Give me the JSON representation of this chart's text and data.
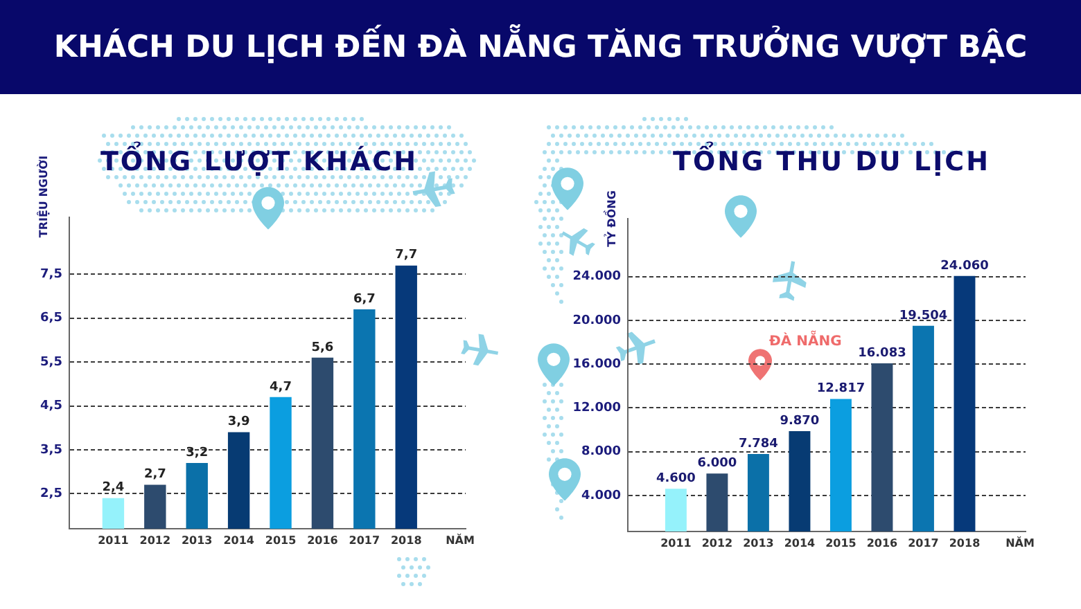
{
  "chart_data": [
    {
      "type": "other",
      "title": "KHÁCH DU LỊCH ĐẾN ĐÀ NẴNG TĂNG TRƯỞNG VƯỢT BẬC"
    },
    {
      "type": "bar",
      "title": "TỔNG LƯỢT KHÁCH",
      "ylabel": "TRIỆU NGƯỜI",
      "xlabel": "NĂM",
      "categories": [
        "2011",
        "2012",
        "2013",
        "2014",
        "2015",
        "2016",
        "2017",
        "2018"
      ],
      "values": [
        2.4,
        2.7,
        3.2,
        3.9,
        4.7,
        5.6,
        6.7,
        7.7
      ],
      "colors": [
        "#95f2fb",
        "#2d4b6e",
        "#0b70a8",
        "#073b73",
        "#0b9ee0",
        "#2d4b6e",
        "#0b75b0",
        "#06397a"
      ],
      "value_labels": [
        "2,4",
        "2,7",
        "3,2",
        "3,9",
        "4,7",
        "5,6",
        "6,7",
        "7,7"
      ],
      "ylim": [
        1.7,
        8.8
      ],
      "yticks": [
        {
          "value": 2.5,
          "label": "2,5"
        },
        {
          "value": 3.5,
          "label": "3,5"
        },
        {
          "value": 4.5,
          "label": "4,5"
        },
        {
          "value": 5.5,
          "label": "5,5"
        },
        {
          "value": 6.5,
          "label": "6,5"
        },
        {
          "value": 7.5,
          "label": "7,5"
        }
      ],
      "grid": "y"
    },
    {
      "type": "bar",
      "title": "TỔNG THU DU LỊCH",
      "ylabel": "TỶ ĐỒNG",
      "xlabel": "NĂM",
      "categories": [
        "2011",
        "2012",
        "2013",
        "2014",
        "2015",
        "2016",
        "2017",
        "2018"
      ],
      "values": [
        4600,
        6000,
        7784,
        9870,
        12817,
        16083,
        19504,
        24060
      ],
      "colors": [
        "#95f2fb",
        "#2d4b6e",
        "#0b70a8",
        "#073b73",
        "#0b9ee0",
        "#2d4b6e",
        "#0b75b0",
        "#06397a"
      ],
      "value_labels": [
        "4.600",
        "6.000",
        "7.784",
        "9.870",
        "12.817",
        "16.083",
        "19.504",
        "24.060"
      ],
      "ylim": [
        700,
        29300
      ],
      "yticks": [
        {
          "value": 4000,
          "label": "4.000"
        },
        {
          "value": 8000,
          "label": "8.000"
        },
        {
          "value": 12000,
          "label": "12.000"
        },
        {
          "value": 16000,
          "label": "16.000"
        },
        {
          "value": 20000,
          "label": "20.000"
        },
        {
          "value": 24000,
          "label": "24.000"
        }
      ],
      "grid": "y",
      "annotations": [
        "ĐÀ NẴNG"
      ]
    }
  ]
}
